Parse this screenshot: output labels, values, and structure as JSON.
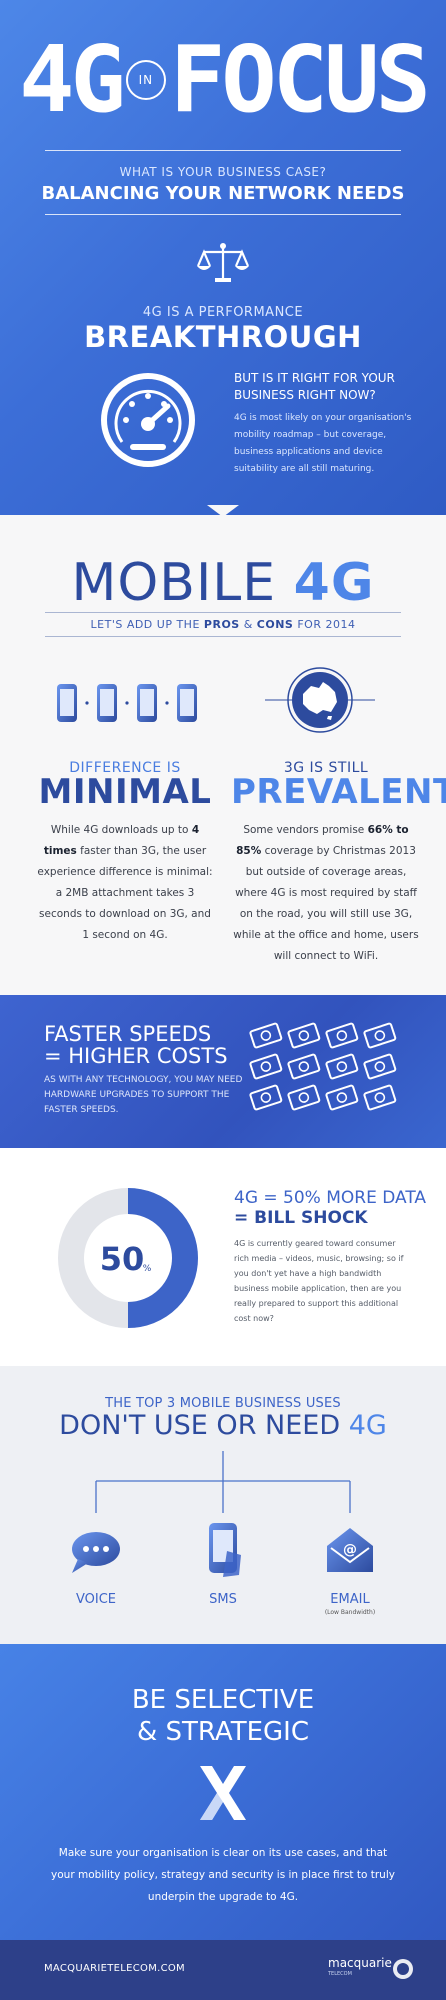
{
  "header": {
    "hero_left": "4G",
    "hero_in": "IN",
    "hero_right": "FOCUS",
    "subtitle_small": "WHAT IS YOUR BUSINESS CASE?",
    "subtitle_big": "BALANCING YOUR NETWORK NEEDS",
    "perf_small": "4G IS A PERFORMANCE",
    "perf_big": "BREAKTHROUGH",
    "question": "BUT IS IT RIGHT FOR YOUR BUSINESS RIGHT NOW?",
    "question_body": "4G is most likely on your organisation's mobility roadmap – but coverage, business applications and device suitability are all still maturing.",
    "icons": [
      "scales-icon",
      "speedometer-icon"
    ]
  },
  "mobile": {
    "title_light": "MOBILE",
    "title_bold": "4G",
    "subtitle_a": "LET'S ADD UP THE",
    "subtitle_pros": "PROS",
    "subtitle_amp": "&",
    "subtitle_cons": "CONS",
    "subtitle_b": "FOR 2014",
    "left": {
      "head_small": "DIFFERENCE IS",
      "head_big": "MINIMAL",
      "body_a": "While 4G downloads up to",
      "body_bold": "4 times",
      "body_b": "faster than 3G, the user experience difference is minimal: a 2MB attachment takes 3 seconds to download on 3G, and 1 second on 4G."
    },
    "right": {
      "head_small": "3G IS STILL",
      "head_big": "PREVALENT",
      "body_a": "Some vendors promise",
      "body_bold": "66% to 85%",
      "body_b": "coverage by Christmas 2013 but outside of coverage areas, where 4G is most required by staff on the road, you will still use 3G, while at the office and home, users will connect to WiFi."
    },
    "colors": {
      "dark_blue": "#2d4b9e",
      "light_blue": "#4e86e8"
    }
  },
  "speed": {
    "title_line1": "FASTER SPEEDS",
    "title_line2": "= HIGHER COSTS",
    "body": "AS WITH ANY TECHNOLOGY, YOU MAY NEED HARDWARE UPGRADES TO SUPPORT THE FASTER SPEEDS.",
    "bill_icon_count": 12
  },
  "bill": {
    "donut_value": "50",
    "donut_unit": "%",
    "donut_fraction": 0.5,
    "title_line1": "4G = 50% MORE DATA",
    "title_line2": "= BILL SHOCK",
    "body": "4G is currently geared toward consumer rich media – videos, music, browsing; so if you don't yet have a high bandwidth business mobile application, then are you really prepared to support this additional cost now?"
  },
  "top3": {
    "title_small": "THE TOP 3 MOBILE BUSINESS USES",
    "title_big_a": "DON'T USE OR NEED",
    "title_big_b": "4G",
    "uses": [
      {
        "label": "VOICE",
        "icon": "speech-bubble-icon"
      },
      {
        "label": "SMS",
        "icon": "phone-sms-icon"
      },
      {
        "label": "EMAIL",
        "icon": "envelope-icon",
        "note": "(Low Bandwidth)"
      }
    ]
  },
  "select": {
    "title_line1": "BE SELECTIVE",
    "title_line2": "& STRATEGIC",
    "body": "Make sure your organisation is clear on its use cases, and that your mobility policy, strategy and security is in place first to truly underpin the upgrade to 4G."
  },
  "footer": {
    "url": "MACQUARIETELECOM.COM",
    "logo": "macquarie",
    "logo_sub": "TELECOM"
  }
}
